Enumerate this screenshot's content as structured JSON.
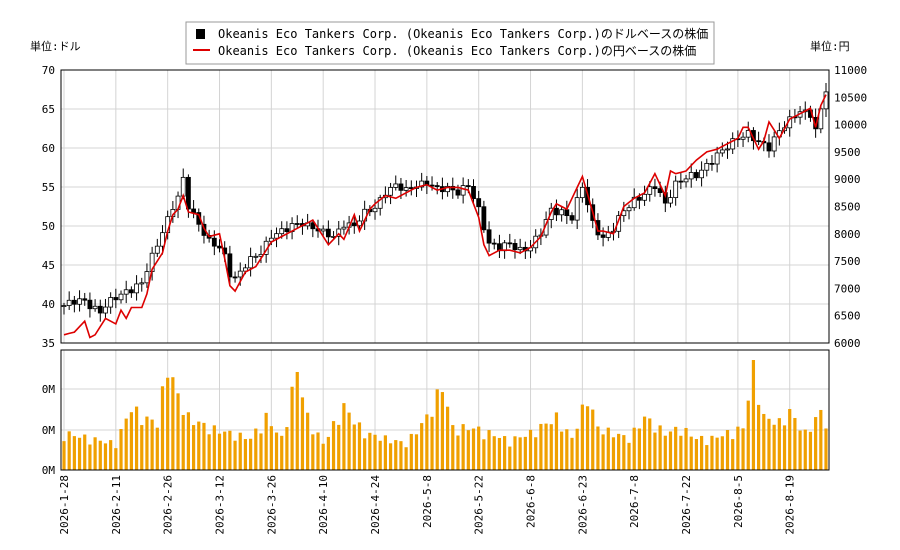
{
  "chart_data": {
    "type": "candlestick",
    "legend": [
      {
        "label": "Okeanis Eco Tankers Corp. (Okeanis Eco Tankers Corp.)のドルベースの株価",
        "marker": "candle",
        "color": "#000000"
      },
      {
        "label": "Okeanis Eco Tankers Corp. (Okeanis Eco Tankers Corp.)の円ベースの株価",
        "marker": "line",
        "color": "#dd0000"
      }
    ],
    "left_unit": "単位:ドル",
    "right_unit": "単位:円",
    "y_left": {
      "min": 35,
      "max": 70,
      "ticks": [
        "35",
        "40",
        "45",
        "50",
        "55",
        "60",
        "65",
        "70"
      ]
    },
    "y_right": {
      "min": 6000,
      "max": 11000,
      "ticks": [
        "6000",
        "6500",
        "7000",
        "7500",
        "8000",
        "8500",
        "9000",
        "9500",
        "10000",
        "10500",
        "11000"
      ]
    },
    "volume_axis_ticks": [
      "0M",
      "0M",
      "0M"
    ],
    "x_tick_labels": [
      "2026-1-28",
      "2026-2-11",
      "2026-2-26",
      "2026-3-12",
      "2026-3-26",
      "2026-4-10",
      "2026-4-24",
      "2026-5-8",
      "2026-5-22",
      "2026-6-8",
      "2026-6-23",
      "2026-7-8",
      "2026-7-22",
      "2026-8-5",
      "2026-8-19"
    ],
    "x_tick_index": [
      0,
      10,
      20,
      30,
      40,
      50,
      60,
      70,
      80,
      90,
      100,
      110,
      120,
      130,
      140
    ],
    "num_days": 148,
    "price_key_points": [
      [
        0,
        39.8
      ],
      [
        4,
        40.5
      ],
      [
        7,
        39.0
      ],
      [
        10,
        40.8
      ],
      [
        12,
        41.8
      ],
      [
        15,
        42.5
      ],
      [
        17,
        46.0
      ],
      [
        19,
        49.5
      ],
      [
        21,
        52.5
      ],
      [
        22,
        53.5
      ],
      [
        23,
        55.8
      ],
      [
        24,
        52.5
      ],
      [
        26,
        50.5
      ],
      [
        28,
        48.0
      ],
      [
        30,
        47.0
      ],
      [
        31,
        46.0
      ],
      [
        32,
        44.0
      ],
      [
        33,
        43.5
      ],
      [
        35,
        45.0
      ],
      [
        38,
        46.5
      ],
      [
        40,
        49.0
      ],
      [
        43,
        49.5
      ],
      [
        46,
        50.5
      ],
      [
        48,
        50.0
      ],
      [
        50,
        49.0
      ],
      [
        52,
        48.5
      ],
      [
        54,
        50.5
      ],
      [
        56,
        50.0
      ],
      [
        58,
        51.5
      ],
      [
        60,
        52.5
      ],
      [
        62,
        54.5
      ],
      [
        64,
        55.0
      ],
      [
        66,
        54.5
      ],
      [
        68,
        55.5
      ],
      [
        70,
        55.5
      ],
      [
        72,
        54.5
      ],
      [
        74,
        55.0
      ],
      [
        76,
        54.5
      ],
      [
        78,
        55.0
      ],
      [
        80,
        52.0
      ],
      [
        82,
        48.0
      ],
      [
        84,
        47.2
      ],
      [
        86,
        47.5
      ],
      [
        88,
        47.0
      ],
      [
        90,
        47.5
      ],
      [
        92,
        49.0
      ],
      [
        94,
        52.0
      ],
      [
        96,
        52.0
      ],
      [
        98,
        51.0
      ],
      [
        100,
        55.0
      ],
      [
        102,
        50.5
      ],
      [
        104,
        48.5
      ],
      [
        106,
        49.5
      ],
      [
        108,
        52.0
      ],
      [
        110,
        53.5
      ],
      [
        112,
        54.0
      ],
      [
        114,
        55.0
      ],
      [
        116,
        53.0
      ],
      [
        118,
        55.5
      ],
      [
        120,
        56.0
      ],
      [
        122,
        56.5
      ],
      [
        124,
        58.0
      ],
      [
        126,
        59.0
      ],
      [
        128,
        60.0
      ],
      [
        130,
        61.5
      ],
      [
        132,
        62.0
      ],
      [
        134,
        60.5
      ],
      [
        136,
        60.0
      ],
      [
        138,
        62.5
      ],
      [
        140,
        63.5
      ],
      [
        142,
        64.5
      ],
      [
        144,
        64.5
      ],
      [
        145,
        62.5
      ],
      [
        147,
        67.5
      ]
    ],
    "yen_key_points": [
      [
        0,
        6150
      ],
      [
        2,
        6200
      ],
      [
        4,
        6400
      ],
      [
        5,
        6100
      ],
      [
        6,
        6150
      ],
      [
        8,
        6450
      ],
      [
        10,
        6350
      ],
      [
        11,
        6600
      ],
      [
        12,
        6450
      ],
      [
        13,
        6650
      ],
      [
        15,
        6650
      ],
      [
        16,
        6900
      ],
      [
        17,
        7350
      ],
      [
        19,
        7650
      ],
      [
        20,
        8050
      ],
      [
        21,
        8350
      ],
      [
        22,
        8450
      ],
      [
        23,
        8700
      ],
      [
        24,
        8400
      ],
      [
        26,
        8350
      ],
      [
        27,
        8100
      ],
      [
        28,
        7950
      ],
      [
        30,
        8000
      ],
      [
        31,
        7550
      ],
      [
        32,
        7050
      ],
      [
        33,
        6950
      ],
      [
        35,
        7300
      ],
      [
        37,
        7400
      ],
      [
        38,
        7550
      ],
      [
        40,
        7850
      ],
      [
        42,
        7950
      ],
      [
        44,
        8050
      ],
      [
        46,
        8150
      ],
      [
        48,
        8250
      ],
      [
        50,
        7950
      ],
      [
        51,
        7800
      ],
      [
        53,
        8000
      ],
      [
        54,
        7900
      ],
      [
        56,
        8350
      ],
      [
        57,
        8050
      ],
      [
        59,
        8450
      ],
      [
        60,
        8550
      ],
      [
        62,
        8700
      ],
      [
        64,
        8650
      ],
      [
        66,
        8750
      ],
      [
        68,
        8850
      ],
      [
        70,
        8900
      ],
      [
        72,
        8800
      ],
      [
        74,
        8850
      ],
      [
        76,
        8850
      ],
      [
        78,
        8800
      ],
      [
        80,
        8300
      ],
      [
        81,
        7800
      ],
      [
        82,
        7600
      ],
      [
        84,
        7700
      ],
      [
        86,
        7700
      ],
      [
        88,
        7650
      ],
      [
        90,
        7750
      ],
      [
        92,
        7950
      ],
      [
        94,
        8400
      ],
      [
        95,
        8550
      ],
      [
        97,
        8450
      ],
      [
        98,
        8650
      ],
      [
        100,
        9050
      ],
      [
        102,
        8400
      ],
      [
        103,
        8050
      ],
      [
        104,
        8050
      ],
      [
        106,
        8000
      ],
      [
        108,
        8500
      ],
      [
        110,
        8650
      ],
      [
        112,
        8750
      ],
      [
        114,
        9100
      ],
      [
        116,
        8700
      ],
      [
        117,
        9150
      ],
      [
        118,
        9100
      ],
      [
        120,
        9150
      ],
      [
        122,
        9350
      ],
      [
        124,
        9500
      ],
      [
        126,
        9550
      ],
      [
        128,
        9650
      ],
      [
        130,
        9750
      ],
      [
        131,
        9950
      ],
      [
        132,
        9950
      ],
      [
        134,
        9550
      ],
      [
        135,
        9700
      ],
      [
        136,
        10050
      ],
      [
        137,
        9900
      ],
      [
        138,
        9750
      ],
      [
        140,
        10100
      ],
      [
        142,
        10200
      ],
      [
        144,
        10300
      ],
      [
        145,
        9950
      ],
      [
        146,
        10350
      ],
      [
        147,
        10550
      ]
    ],
    "volume_key_points": [
      [
        0,
        0.35
      ],
      [
        5,
        0.3
      ],
      [
        10,
        0.25
      ],
      [
        13,
        0.6
      ],
      [
        15,
        0.5
      ],
      [
        18,
        0.45
      ],
      [
        20,
        1.0
      ],
      [
        22,
        0.7
      ],
      [
        24,
        0.5
      ],
      [
        28,
        0.4
      ],
      [
        32,
        0.35
      ],
      [
        36,
        0.3
      ],
      [
        39,
        0.5
      ],
      [
        42,
        0.3
      ],
      [
        45,
        0.95
      ],
      [
        47,
        0.5
      ],
      [
        50,
        0.25
      ],
      [
        54,
        0.6
      ],
      [
        58,
        0.35
      ],
      [
        62,
        0.3
      ],
      [
        66,
        0.25
      ],
      [
        70,
        0.5
      ],
      [
        73,
        0.8
      ],
      [
        75,
        0.4
      ],
      [
        79,
        0.4
      ],
      [
        82,
        0.35
      ],
      [
        86,
        0.28
      ],
      [
        90,
        0.35
      ],
      [
        95,
        0.5
      ],
      [
        98,
        0.3
      ],
      [
        101,
        0.7
      ],
      [
        103,
        0.4
      ],
      [
        106,
        0.35
      ],
      [
        109,
        0.3
      ],
      [
        112,
        0.5
      ],
      [
        116,
        0.35
      ],
      [
        119,
        0.4
      ],
      [
        122,
        0.3
      ],
      [
        125,
        0.3
      ],
      [
        128,
        0.35
      ],
      [
        131,
        0.4
      ],
      [
        133,
        1.0
      ],
      [
        135,
        0.5
      ],
      [
        138,
        0.45
      ],
      [
        140,
        0.55
      ],
      [
        143,
        0.35
      ],
      [
        146,
        0.55
      ],
      [
        147,
        0.45
      ]
    ]
  }
}
